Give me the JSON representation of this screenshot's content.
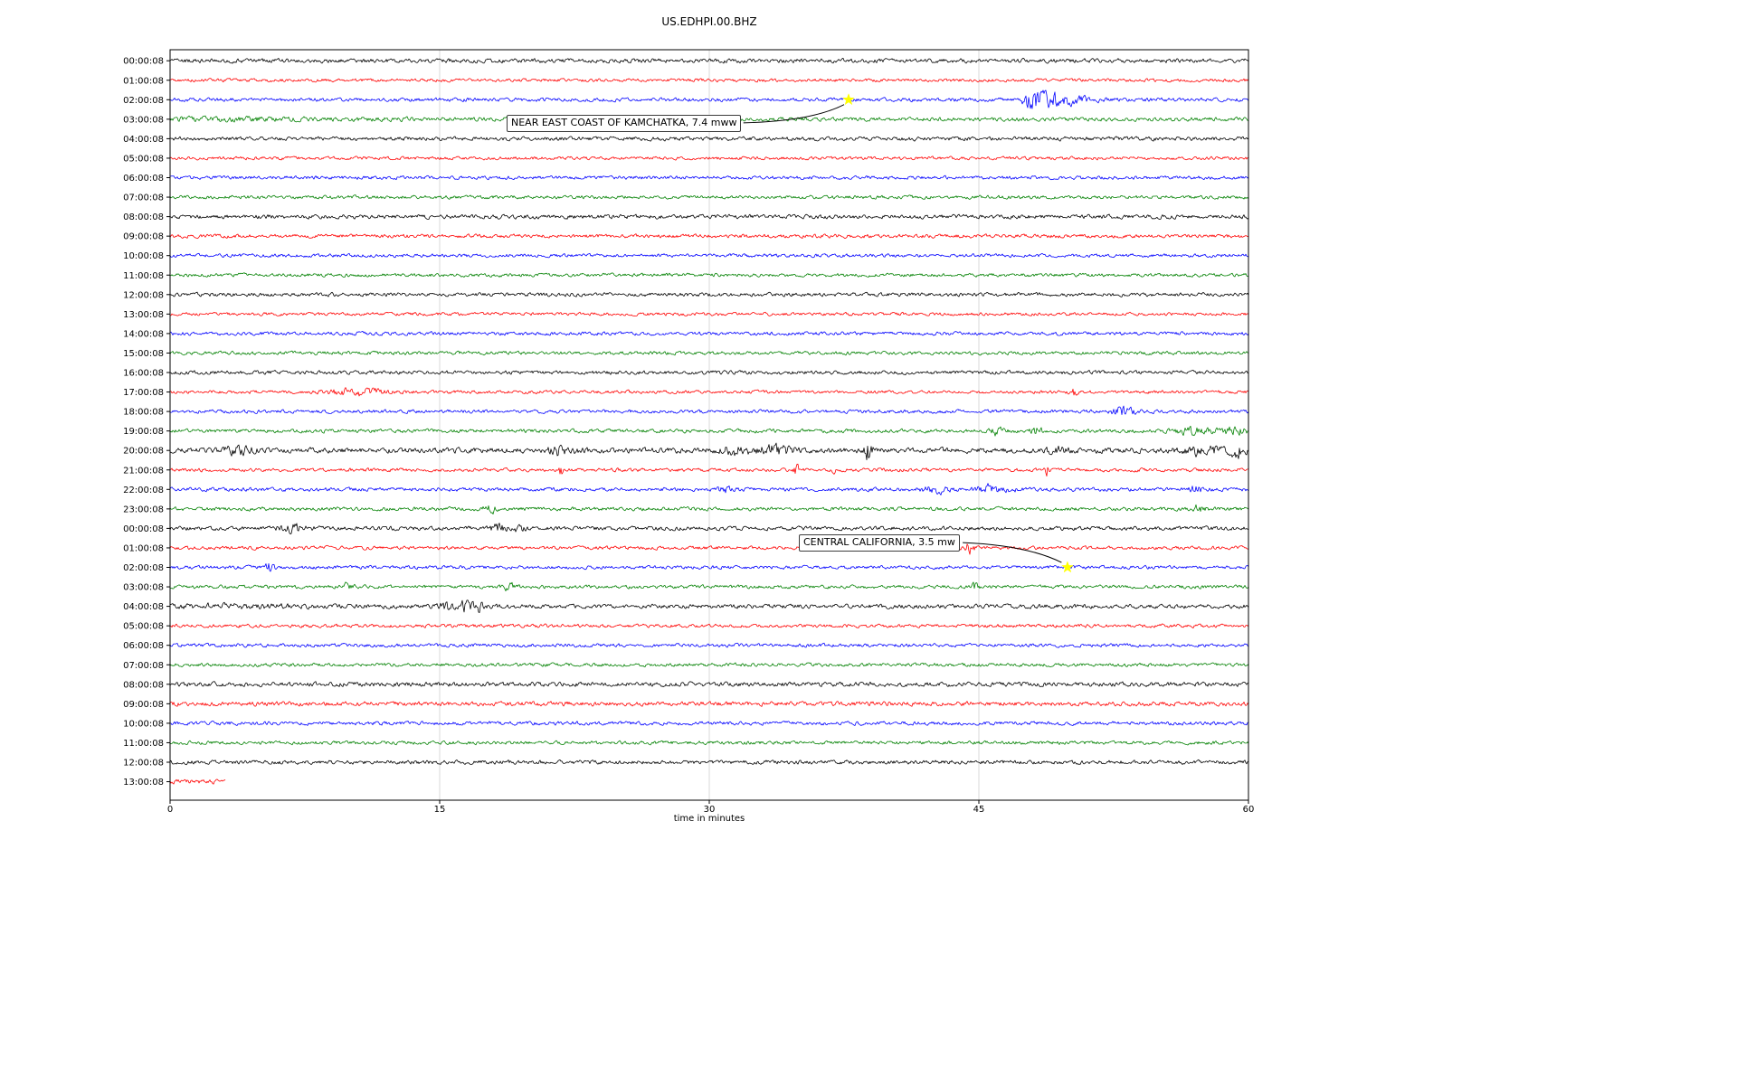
{
  "chart_data": {
    "type": "line",
    "variant": "seismogram-helicorder-dayplot",
    "title": "US.EDHPI.00.BHZ",
    "xlabel": "time in minutes",
    "xlim": [
      0,
      60
    ],
    "x_ticks": [
      0,
      15,
      30,
      45,
      60
    ],
    "grid": "vertical",
    "trace_color_cycle": [
      "#000000",
      "#ff0000",
      "#0000ff",
      "#008000"
    ],
    "rows": [
      {
        "label": "00:00:08",
        "amp": 1.8
      },
      {
        "label": "01:00:08",
        "amp": 1.4
      },
      {
        "label": "02:00:08",
        "amp": 1.6,
        "bursts": [
          {
            "x": 47.8,
            "r": 0.5,
            "d": 2.5,
            "a": 5.0
          }
        ]
      },
      {
        "label": "03:00:08",
        "amp": 1.7,
        "bursts": [
          {
            "x": 2.0,
            "r": 2.5,
            "d": 9.0,
            "a": 0.5
          }
        ]
      },
      {
        "label": "04:00:08",
        "amp": 1.7
      },
      {
        "label": "05:00:08",
        "amp": 1.4
      },
      {
        "label": "06:00:08",
        "amp": 1.5
      },
      {
        "label": "07:00:08",
        "amp": 1.5
      },
      {
        "label": "08:00:08",
        "amp": 1.8
      },
      {
        "label": "09:00:08",
        "amp": 1.6
      },
      {
        "label": "10:00:08",
        "amp": 1.5
      },
      {
        "label": "11:00:08",
        "amp": 1.5
      },
      {
        "label": "12:00:08",
        "amp": 1.6
      },
      {
        "label": "13:00:08",
        "amp": 1.4
      },
      {
        "label": "14:00:08",
        "amp": 1.5
      },
      {
        "label": "15:00:08",
        "amp": 1.5
      },
      {
        "label": "16:00:08",
        "amp": 1.6
      },
      {
        "label": "17:00:08",
        "amp": 1.4,
        "bursts": [
          {
            "x": 10.2,
            "r": 1.3,
            "d": 1.6,
            "a": 2.2
          },
          {
            "x": 50.2,
            "r": 0.15,
            "d": 0.3,
            "a": 2.8
          }
        ]
      },
      {
        "label": "18:00:08",
        "amp": 1.5,
        "bursts": [
          {
            "x": 52.8,
            "r": 0.4,
            "d": 0.8,
            "a": 2.6
          }
        ]
      },
      {
        "label": "19:00:08",
        "amp": 1.6,
        "bursts": [
          {
            "x": 45.9,
            "r": 0.25,
            "d": 0.4,
            "a": 2.0
          },
          {
            "x": 48.1,
            "r": 0.3,
            "d": 0.5,
            "a": 1.8
          },
          {
            "x": 56.8,
            "r": 0.8,
            "d": 1.2,
            "a": 1.6
          },
          {
            "x": 59.0,
            "r": 0.6,
            "d": 1.0,
            "a": 1.8
          }
        ]
      },
      {
        "label": "20:00:08",
        "amp": 2.3,
        "bursts": [
          {
            "x": 3.6,
            "r": 0.7,
            "d": 1.0,
            "a": 1.2
          },
          {
            "x": 21.6,
            "r": 0.5,
            "d": 0.8,
            "a": 1.5
          },
          {
            "x": 31.3,
            "r": 0.8,
            "d": 1.2,
            "a": 1.3
          },
          {
            "x": 33.6,
            "r": 0.8,
            "d": 1.2,
            "a": 1.5
          },
          {
            "x": 38.8,
            "r": 0.15,
            "d": 0.3,
            "a": 4.0
          },
          {
            "x": 49.2,
            "r": 0.4,
            "d": 0.6,
            "a": 1.3
          },
          {
            "x": 57.3,
            "r": 0.9,
            "d": 1.2,
            "a": 1.5
          },
          {
            "x": 59.4,
            "r": 0.4,
            "d": 0.6,
            "a": 1.8
          }
        ]
      },
      {
        "label": "21:00:08",
        "amp": 1.5,
        "bursts": [
          {
            "x": 21.7,
            "r": 0.1,
            "d": 0.2,
            "a": 3.8
          },
          {
            "x": 34.8,
            "r": 0.1,
            "d": 0.2,
            "a": 2.8
          },
          {
            "x": 36.9,
            "r": 0.1,
            "d": 0.2,
            "a": 2.2
          },
          {
            "x": 48.8,
            "r": 0.12,
            "d": 0.25,
            "a": 3.2
          }
        ]
      },
      {
        "label": "22:00:08",
        "amp": 1.6,
        "bursts": [
          {
            "x": 30.7,
            "r": 0.2,
            "d": 0.4,
            "a": 2.0
          },
          {
            "x": 42.4,
            "r": 0.6,
            "d": 1.0,
            "a": 1.8
          },
          {
            "x": 45.6,
            "r": 0.7,
            "d": 1.2,
            "a": 2.0
          },
          {
            "x": 57.0,
            "r": 0.3,
            "d": 0.5,
            "a": 1.6
          }
        ]
      },
      {
        "label": "23:00:08",
        "amp": 1.6,
        "bursts": [
          {
            "x": 17.7,
            "r": 0.25,
            "d": 0.45,
            "a": 2.4
          },
          {
            "x": 57.2,
            "r": 0.2,
            "d": 0.35,
            "a": 1.8
          }
        ]
      },
      {
        "label": "00:00:08",
        "amp": 1.7,
        "bursts": [
          {
            "x": 6.6,
            "r": 0.6,
            "d": 1.0,
            "a": 2.0
          },
          {
            "x": 18.1,
            "r": 0.3,
            "d": 0.5,
            "a": 2.2
          },
          {
            "x": 19.4,
            "r": 0.25,
            "d": 0.45,
            "a": 1.8
          }
        ]
      },
      {
        "label": "01:00:08",
        "amp": 1.5,
        "bursts": [
          {
            "x": 37.1,
            "r": 0.1,
            "d": 0.2,
            "a": 2.4
          },
          {
            "x": 44.4,
            "r": 0.15,
            "d": 0.3,
            "a": 3.2
          }
        ]
      },
      {
        "label": "02:00:08",
        "amp": 1.5,
        "bursts": [
          {
            "x": 5.5,
            "r": 0.15,
            "d": 0.3,
            "a": 2.8
          }
        ]
      },
      {
        "label": "03:00:08",
        "amp": 1.5,
        "bursts": [
          {
            "x": 9.8,
            "r": 0.15,
            "d": 0.35,
            "a": 2.8
          },
          {
            "x": 18.8,
            "r": 0.2,
            "d": 0.4,
            "a": 2.2
          },
          {
            "x": 44.7,
            "r": 0.15,
            "d": 0.3,
            "a": 1.8
          }
        ]
      },
      {
        "label": "04:00:08",
        "amp": 1.8,
        "bursts": [
          {
            "x": 2.5,
            "r": 2.5,
            "d": 5.0,
            "a": 0.6
          },
          {
            "x": 15.3,
            "r": 0.3,
            "d": 0.5,
            "a": 2.4
          },
          {
            "x": 16.4,
            "r": 0.25,
            "d": 0.45,
            "a": 2.6
          },
          {
            "x": 17.1,
            "r": 0.2,
            "d": 0.4,
            "a": 2.2
          }
        ]
      },
      {
        "label": "05:00:08",
        "amp": 1.5
      },
      {
        "label": "06:00:08",
        "amp": 1.5
      },
      {
        "label": "07:00:08",
        "amp": 1.5
      },
      {
        "label": "08:00:08",
        "amp": 1.9
      },
      {
        "label": "09:00:08",
        "amp": 1.9
      },
      {
        "label": "10:00:08",
        "amp": 1.6
      },
      {
        "label": "11:00:08",
        "amp": 1.5
      },
      {
        "label": "12:00:08",
        "amp": 1.7
      },
      {
        "label": "13:00:08",
        "amp": 1.9,
        "xmax": 3.1
      }
    ],
    "events": [
      {
        "label": "NEAR EAST COAST OF KAMCHATKA, 7.4 mww",
        "row": 2,
        "x_minutes": 37.75,
        "marker": "star",
        "marker_color": "#ffff00",
        "box": {
          "m": 18.7,
          "row": 2.78
        },
        "arrow": {
          "from": {
            "m": 31.9,
            "row": 3.19
          },
          "ctrl": {
            "m": 35.7,
            "row": 3.1
          },
          "to": {
            "m": 37.5,
            "row": 2.25
          }
        }
      },
      {
        "label": "CENTRAL CALIFORNIA, 3.5 mw",
        "row": 26,
        "x_minutes": 49.93,
        "marker": "star",
        "marker_color": "#ffff00",
        "box": {
          "m": 35.0,
          "row": 24.32
        },
        "arrow": {
          "from": {
            "m": 44.1,
            "row": 24.73
          },
          "ctrl": {
            "m": 47.7,
            "row": 24.87
          },
          "to": {
            "m": 49.6,
            "row": 25.75
          }
        }
      }
    ]
  }
}
